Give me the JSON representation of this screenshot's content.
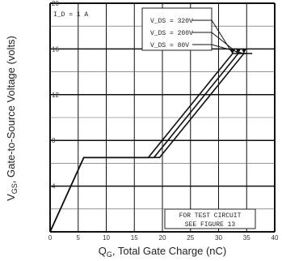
{
  "chart_data": {
    "type": "line",
    "xlabel": "Q_G, Total Gate Charge (nC)",
    "xlabel_main": "Q",
    "xlabel_sub": "G",
    "xlabel_rest": ", Total Gate Charge (nC)",
    "ylabel_main": "V",
    "ylabel_sub": "GS",
    "ylabel_rest": ", Gate-to-Source Voltage (volts)",
    "xlim": [
      0,
      40
    ],
    "ylim": [
      0,
      20
    ],
    "x_ticks": [
      0,
      5,
      10,
      15,
      20,
      25,
      30,
      35,
      40
    ],
    "x_tick_labels": [
      "0",
      "5",
      "10",
      "15",
      "20",
      "25",
      "30",
      "35",
      "40"
    ],
    "y_ticks": [
      0,
      4,
      8,
      12,
      16,
      20
    ],
    "y_tick_labels": [
      "0",
      "4",
      "8",
      "12",
      "16",
      "20"
    ],
    "grid": true,
    "annotations": {
      "condition": "I_D = 1 A",
      "test_circuit_line1": "FOR TEST CIRCUIT",
      "test_circuit_line2": "SEE FIGURE 13"
    },
    "series": [
      {
        "name": "V_DS = 320V",
        "label": "V_DS = 320V",
        "x": [
          0,
          6,
          17.5,
          32.5,
          34
        ],
        "y": [
          0,
          6.5,
          6.5,
          15.6,
          15.6
        ]
      },
      {
        "name": "V_DS = 200V",
        "label": "V_DS = 200V",
        "x": [
          0,
          6,
          18.5,
          33.5,
          35
        ],
        "y": [
          0,
          6.5,
          6.5,
          15.6,
          15.6
        ]
      },
      {
        "name": "V_DS = 80V",
        "label": "V_DS = 80V",
        "x": [
          0,
          6,
          19.5,
          34.5,
          36
        ],
        "y": [
          0,
          6.5,
          6.5,
          15.6,
          15.6
        ]
      }
    ]
  }
}
